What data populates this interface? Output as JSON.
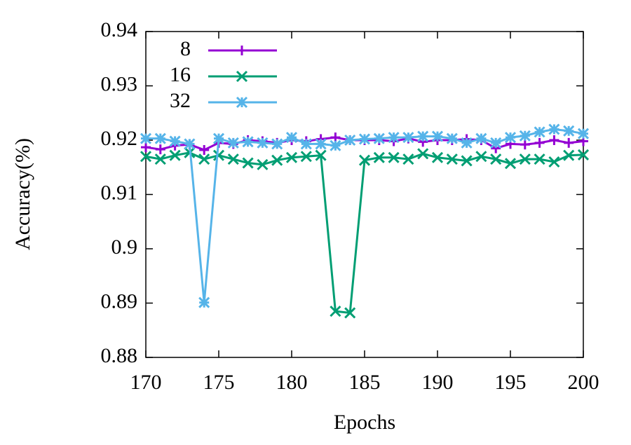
{
  "chart_data": {
    "type": "line",
    "xlabel": "Epochs",
    "ylabel": "Accuracy(%)",
    "x": [
      170,
      171,
      172,
      173,
      174,
      175,
      176,
      177,
      178,
      179,
      180,
      181,
      182,
      183,
      184,
      185,
      186,
      187,
      188,
      189,
      190,
      191,
      192,
      193,
      194,
      195,
      196,
      197,
      198,
      199,
      200
    ],
    "series": [
      {
        "name": "8",
        "color": "#9400d3",
        "marker": "plus",
        "values": [
          0.9187,
          0.9183,
          0.919,
          0.9192,
          0.9182,
          0.9195,
          0.9193,
          0.92,
          0.9198,
          0.9195,
          0.92,
          0.9198,
          0.9202,
          0.9205,
          0.92,
          0.92,
          0.92,
          0.9198,
          0.9203,
          0.9197,
          0.92,
          0.92,
          0.9202,
          0.92,
          0.9185,
          0.9193,
          0.9192,
          0.9195,
          0.92,
          0.9195,
          0.9198
        ]
      },
      {
        "name": "16",
        "color": "#009e73",
        "marker": "cross",
        "values": [
          0.917,
          0.9165,
          0.9172,
          0.9177,
          0.9165,
          0.9172,
          0.9165,
          0.9158,
          0.9155,
          0.9163,
          0.9168,
          0.917,
          0.9172,
          0.8885,
          0.8882,
          0.9163,
          0.9168,
          0.9168,
          0.9165,
          0.9175,
          0.9168,
          0.9165,
          0.9162,
          0.917,
          0.9165,
          0.9157,
          0.9165,
          0.9165,
          0.916,
          0.9172,
          0.9173
        ]
      },
      {
        "name": "32",
        "color": "#56b4e9",
        "marker": "star",
        "values": [
          0.9203,
          0.9203,
          0.9198,
          0.9193,
          0.8901,
          0.9203,
          0.9195,
          0.9197,
          0.9195,
          0.9193,
          0.9205,
          0.9193,
          0.9193,
          0.919,
          0.92,
          0.9202,
          0.9203,
          0.9205,
          0.9205,
          0.9207,
          0.9207,
          0.9203,
          0.9195,
          0.9203,
          0.9195,
          0.9205,
          0.9208,
          0.9215,
          0.922,
          0.9217,
          0.9212
        ]
      }
    ],
    "xlim": [
      170,
      200
    ],
    "xticks": [
      170,
      175,
      180,
      185,
      190,
      195,
      200
    ],
    "ylim": [
      0.88,
      0.94
    ],
    "yticks": [
      0.88,
      0.89,
      0.9,
      0.91,
      0.92,
      0.93,
      0.94
    ],
    "legend": "top-left"
  }
}
